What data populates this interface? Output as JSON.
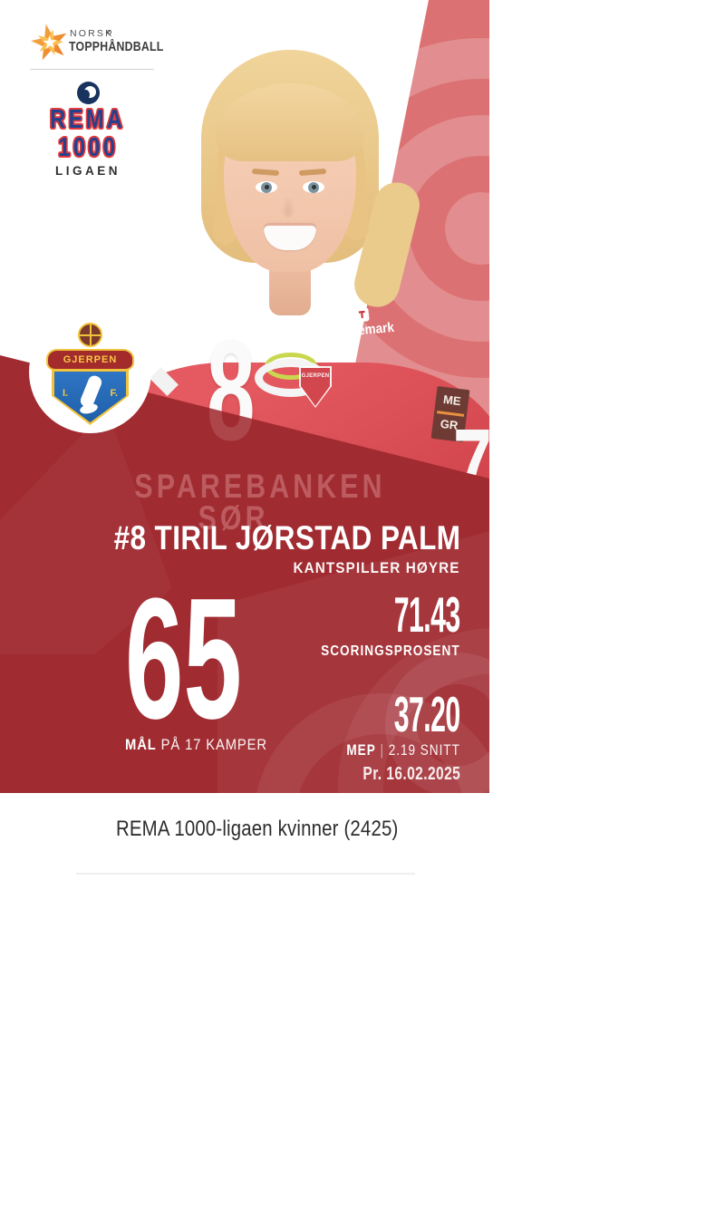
{
  "branding": {
    "norsk_topphandball": {
      "line1": "NORSK",
      "line2": "TOPPHÅNDBALL"
    },
    "rema_liga": {
      "word1": "REMA",
      "word2": "1000",
      "word3": "LIGAEN"
    }
  },
  "club_badge": {
    "name": "GJERPEN",
    "left_initial": "I.",
    "right_initial": "F."
  },
  "photo": {
    "jersey_number": "8",
    "sleeve_number": "7",
    "chest_sponsor_line1": "SPAREBANKEN",
    "chest_sponsor_line2": "SØR",
    "shoulder_sponsor": "Telemark",
    "kit_brand": "umbro",
    "crest_text": "GJERPEN",
    "sleeve_patch_line1": "ME",
    "sleeve_patch_line2": "GR"
  },
  "player": {
    "name": "#8 TIRIL JØRSTAD PALM",
    "position": "KANTSPILLER HØYRE"
  },
  "stats": {
    "goals_value": "65",
    "goals_label_bold": "MÅL",
    "goals_label_rest": " PÅ 17 KAMPER",
    "scoring_value": "71.43",
    "scoring_label": "SCORINGSPROSENT",
    "mep_value": "37.20",
    "mep_label_bold": "MEP",
    "mep_label_sep": " | ",
    "mep_label_rest": "2.19 SNITT",
    "as_of_date": "Pr. 16.02.2025"
  },
  "footer": {
    "caption": "REMA 1000-ligaen kvinner (2425)"
  },
  "colors": {
    "dark_red": "#A02B31",
    "salmon_wedge": "#DB7173",
    "jersey_red": "#D0434B",
    "rema_blue": "#23418D",
    "rema_outline_red": "#E23B3E",
    "lion_navy": "#17335E",
    "crest_gold": "#F1C23B",
    "crest_blue": "#2E75C4",
    "banner_red": "#A32B2B",
    "logo_orange": "#E8741E",
    "caption_text": "#2D2D2D"
  }
}
